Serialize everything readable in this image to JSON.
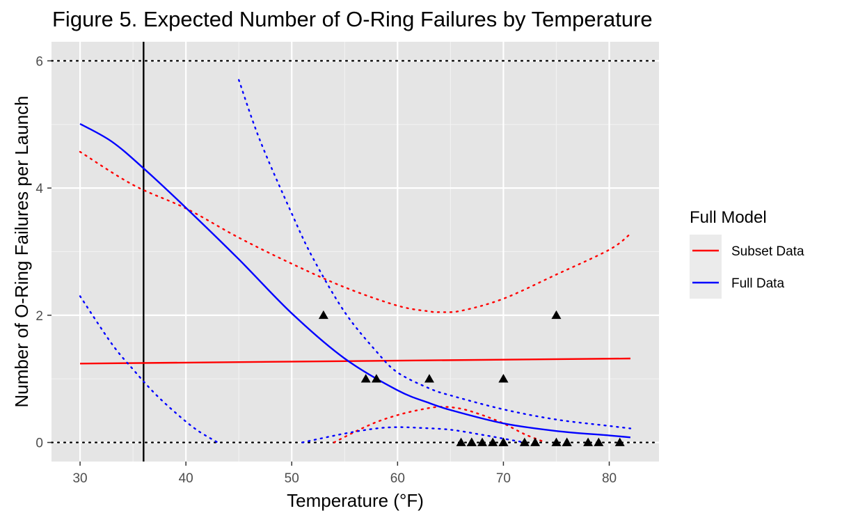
{
  "chart_data": {
    "type": "line",
    "title": "Figure 5. Expected Number of O-Ring Failures by Temperature",
    "xlabel": "Temperature (°F)",
    "ylabel": "Number of O-Ring Failures per Launch",
    "xlim": [
      27.3,
      84.7
    ],
    "ylim": [
      -0.3,
      6.3
    ],
    "x_ticks": [
      30,
      40,
      50,
      60,
      70,
      80
    ],
    "y_ticks": [
      0,
      2,
      4,
      6
    ],
    "grid": true,
    "background": "#e5e5e5",
    "legend": {
      "title": "Full Model",
      "placement": "right",
      "entries": [
        {
          "label": "Subset Data",
          "color": "#ff0000"
        },
        {
          "label": "Full Data",
          "color": "#0000ff"
        }
      ]
    },
    "reference_lines": {
      "horizontal_dotted": [
        0,
        6
      ],
      "vertical_solid": 36
    },
    "points": {
      "marker": "triangle",
      "color": "#000000",
      "x": [
        53,
        57,
        58,
        63,
        66,
        67,
        67,
        67,
        68,
        69,
        70,
        70,
        70,
        70,
        72,
        73,
        75,
        75,
        76,
        76,
        78,
        79,
        81
      ],
      "y": [
        2,
        1,
        1,
        1,
        0,
        0,
        0,
        0,
        0,
        0,
        1,
        1,
        0,
        0,
        0,
        0,
        2,
        0,
        0,
        0,
        0,
        0,
        0
      ]
    },
    "series": [
      {
        "name": "Subset Data",
        "color": "#ff0000",
        "style": "solid",
        "x": [
          30,
          82
        ],
        "y": [
          1.24,
          1.32
        ]
      },
      {
        "color": "#ff0000",
        "style": "dotted",
        "x": [
          30,
          35,
          40,
          45,
          50,
          55,
          60,
          63,
          64,
          66,
          70,
          75,
          80,
          82
        ],
        "y": [
          4.57,
          4.05,
          3.68,
          3.22,
          2.81,
          2.44,
          2.15,
          2.06,
          2.05,
          2.07,
          2.26,
          2.64,
          3.03,
          3.28
        ]
      },
      {
        "color": "#ff0000",
        "style": "dotted",
        "x": [
          54,
          56,
          58,
          60,
          62,
          64,
          66,
          68,
          70,
          72,
          74
        ],
        "y": [
          0.0,
          0.17,
          0.32,
          0.43,
          0.51,
          0.56,
          0.53,
          0.43,
          0.3,
          0.13,
          0.0
        ]
      },
      {
        "name": "Full Data",
        "color": "#0000ff",
        "style": "solid",
        "x": [
          30,
          33,
          36,
          40,
          45,
          50,
          55,
          60,
          63,
          65,
          70,
          75,
          80,
          82
        ],
        "y": [
          5.01,
          4.73,
          4.31,
          3.69,
          2.88,
          2.03,
          1.32,
          0.82,
          0.62,
          0.51,
          0.3,
          0.18,
          0.11,
          0.08
        ]
      },
      {
        "color": "#0000ff",
        "style": "dotted",
        "x": [
          45,
          47,
          50,
          52,
          55,
          58,
          60,
          63,
          65,
          70,
          75,
          80,
          82
        ],
        "y": [
          5.7,
          4.75,
          3.6,
          2.9,
          2.05,
          1.43,
          1.1,
          0.85,
          0.74,
          0.52,
          0.36,
          0.26,
          0.22
        ]
      },
      {
        "color": "#0000ff",
        "style": "dotted",
        "x": [
          30,
          33,
          35,
          37,
          39,
          41,
          43
        ],
        "y": [
          2.3,
          1.55,
          1.15,
          0.78,
          0.47,
          0.2,
          0.0
        ]
      },
      {
        "color": "#0000ff",
        "style": "dotted",
        "x": [
          51,
          55,
          58,
          60,
          62,
          65,
          68,
          70,
          72
        ],
        "y": [
          0.0,
          0.14,
          0.22,
          0.24,
          0.23,
          0.2,
          0.12,
          0.06,
          0.0
        ]
      }
    ]
  }
}
